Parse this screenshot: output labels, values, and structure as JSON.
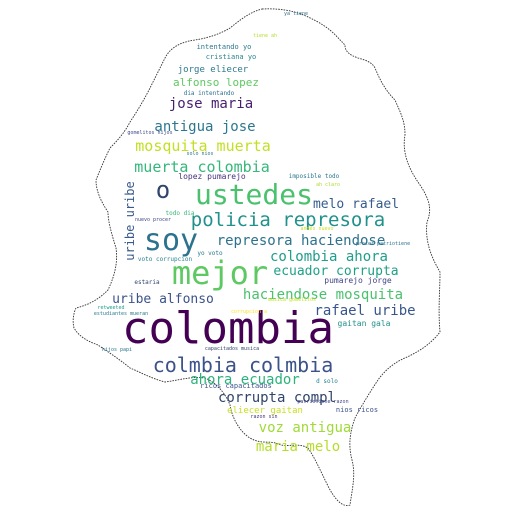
{
  "colors": {
    "background": "#ffffff",
    "outline": "#333333"
  },
  "words": [
    {
      "text": "colombia",
      "color": "#440154"
    },
    {
      "text": "mejor",
      "color": "#5ec962"
    },
    {
      "text": "soy",
      "color": "#2c728e"
    },
    {
      "text": "ustedes",
      "color": "#4ac16d"
    },
    {
      "text": "o",
      "color": "#31446b"
    },
    {
      "text": "colmbia colmbia",
      "color": "#3b528b"
    },
    {
      "text": "policia represora",
      "color": "#21918c"
    },
    {
      "text": "mosquita muerta",
      "color": "#c2df23"
    },
    {
      "text": "muerta colombia",
      "color": "#35b779"
    },
    {
      "text": "represora haciendose",
      "color": "#2c728e"
    },
    {
      "text": "colombia ahora",
      "color": "#1f9e89"
    },
    {
      "text": "haciendose mosquita",
      "color": "#4ac16d"
    },
    {
      "text": "ecuador corrupta",
      "color": "#1fa187"
    },
    {
      "text": "rafael uribe",
      "color": "#39568c"
    },
    {
      "text": "ahora ecuador",
      "color": "#2db27d"
    },
    {
      "text": "melo rafael",
      "color": "#365c8d"
    },
    {
      "text": "jose maria",
      "color": "#481f70"
    },
    {
      "text": "antigua jose",
      "color": "#2a788e"
    },
    {
      "text": "uribe alfonso",
      "color": "#3b528b"
    },
    {
      "text": "corrupta compl",
      "color": "#31446b"
    },
    {
      "text": "voz antigua",
      "color": "#a0da39"
    },
    {
      "text": "maria melo",
      "color": "#b5de2b"
    },
    {
      "text": "uribe uribe",
      "color": "#38598c"
    },
    {
      "text": "alfonso lopez",
      "color": "#5ec962"
    },
    {
      "text": "jorge eliecer",
      "color": "#2a788e"
    },
    {
      "text": "eliecer gaitan",
      "color": "#c8e020"
    },
    {
      "text": "lopez pumarejo",
      "color": "#46327e"
    },
    {
      "text": "pumarejo jorge",
      "color": "#414487"
    },
    {
      "text": "gaitan gala",
      "color": "#21918c"
    },
    {
      "text": "nios ricos",
      "color": "#3b528b"
    },
    {
      "text": "ricos capacitados",
      "color": "#39568c"
    },
    {
      "text": "intentando yo",
      "color": "#2a788e"
    },
    {
      "text": "cristiana yo",
      "color": "#26828e"
    },
    {
      "text": "dia intentando",
      "color": "#2c728e"
    },
    {
      "text": "voto corrupcion",
      "color": "#26828e"
    },
    {
      "text": "estaria",
      "color": "#31446b"
    },
    {
      "text": "estudiantes mueran",
      "color": "#2a788e"
    },
    {
      "text": "retweeted",
      "color": "#1f9e89"
    },
    {
      "text": "yo voto",
      "color": "#2a788e"
    },
    {
      "text": "todo dia",
      "color": "#35b779"
    },
    {
      "text": "nuevo procer",
      "color": "#414487"
    },
    {
      "text": "imposible todo",
      "color": "#2a788e"
    },
    {
      "text": "d solo",
      "color": "#26828e"
    },
    {
      "text": "gomelitos hijos",
      "color": "#3e4989"
    },
    {
      "text": "hijos papi",
      "color": "#2a788e"
    },
    {
      "text": "capacitados musica",
      "color": "#31446b"
    },
    {
      "text": "patriotiene razon",
      "color": "#414487"
    },
    {
      "text": "solo nios",
      "color": "#2c728e"
    },
    {
      "text": "ya tiene",
      "color": "#2c728e"
    },
    {
      "text": "tiene ah",
      "color": "#b5de2b"
    },
    {
      "text": "corrupcion a",
      "color": "#fde725"
    },
    {
      "text": "musica gomelitos",
      "color": "#c2df23"
    },
    {
      "text": "procer patriotiene",
      "color": "#2c728e"
    },
    {
      "text": "ah claro",
      "color": "#addc30"
    },
    {
      "text": "andes nuevo",
      "color": "#c8e020"
    },
    {
      "text": "razon sin",
      "color": "#46327e"
    }
  ]
}
